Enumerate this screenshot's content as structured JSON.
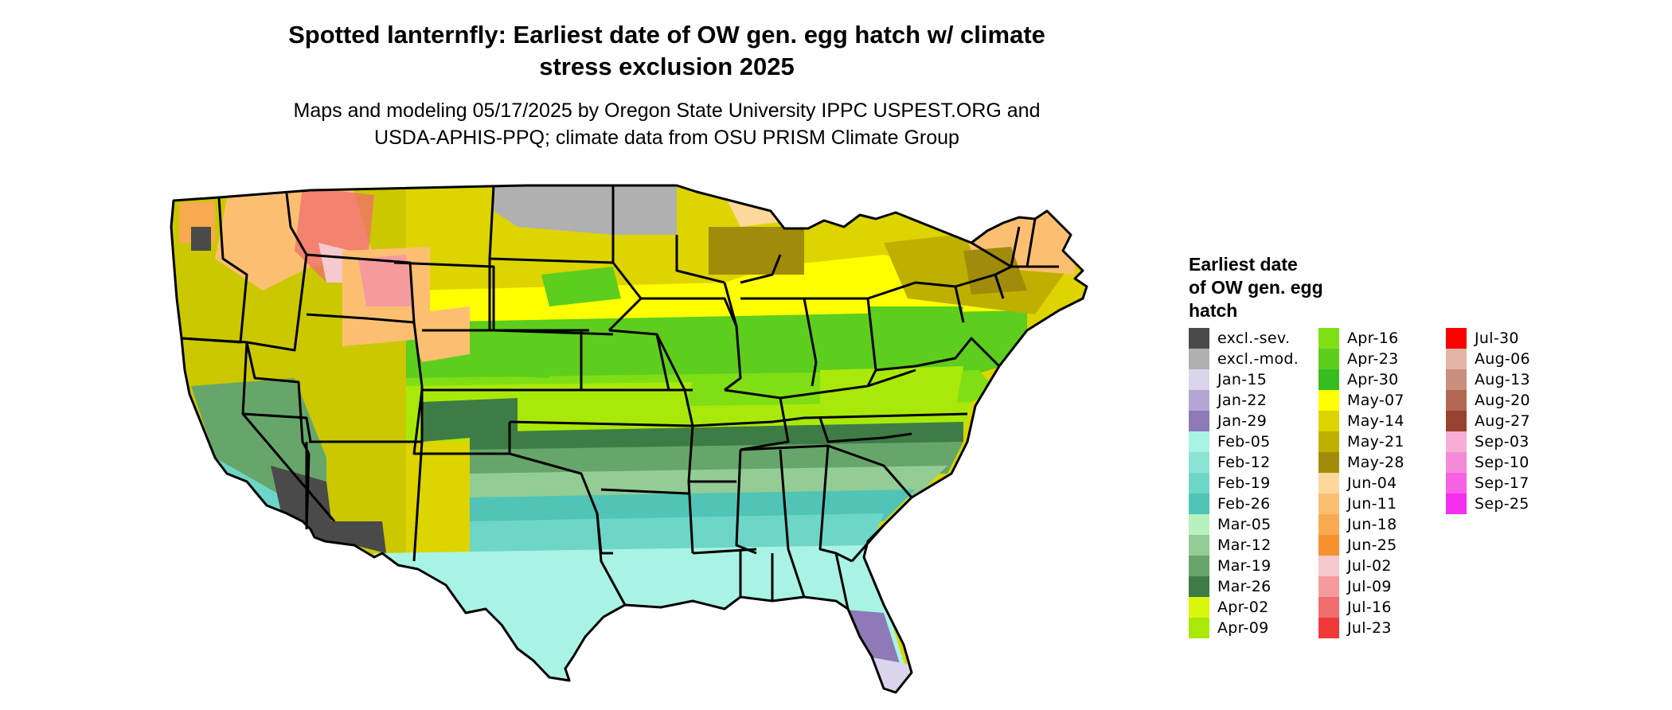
{
  "header": {
    "title_line1": "Spotted lanternfly: Earliest date of OW gen. egg hatch w/ climate",
    "title_line2": "stress exclusion 2025",
    "subtitle_line1": "Maps and modeling 05/17/2025 by Oregon State University IPPC USPEST.ORG and",
    "subtitle_line2": "USDA-APHIS-PPQ; climate data from OSU PRISM Climate Group"
  },
  "legend": {
    "title_lines": [
      "Earliest date",
      "of OW gen. egg",
      "hatch"
    ],
    "columns": [
      [
        {
          "label": "excl.-sev.",
          "color": "#4a4a4a"
        },
        {
          "label": "excl.-mod.",
          "color": "#b0b0b0"
        },
        {
          "label": "Jan-15",
          "color": "#dcd4ec"
        },
        {
          "label": "Jan-22",
          "color": "#b3a6d2"
        },
        {
          "label": "Jan-29",
          "color": "#8d7ab6"
        },
        {
          "label": "Feb-05",
          "color": "#a9f3e4"
        },
        {
          "label": "Feb-12",
          "color": "#8be4d4"
        },
        {
          "label": "Feb-19",
          "color": "#6dd6c7"
        },
        {
          "label": "Feb-26",
          "color": "#4fc4b7"
        },
        {
          "label": "Mar-05",
          "color": "#b7f2bd"
        },
        {
          "label": "Mar-12",
          "color": "#93cc94"
        },
        {
          "label": "Mar-19",
          "color": "#67a66a"
        },
        {
          "label": "Mar-26",
          "color": "#3e7c45"
        },
        {
          "label": "Apr-02",
          "color": "#d9f70a"
        },
        {
          "label": "Apr-09",
          "color": "#a9e90a"
        }
      ],
      [
        {
          "label": "Apr-16",
          "color": "#80df14"
        },
        {
          "label": "Apr-23",
          "color": "#5dcd1e"
        },
        {
          "label": "Apr-30",
          "color": "#37bd21"
        },
        {
          "label": "May-07",
          "color": "#ffff00"
        },
        {
          "label": "May-14",
          "color": "#ddd400"
        },
        {
          "label": "May-21",
          "color": "#bfb000"
        },
        {
          "label": "May-28",
          "color": "#a08c0a"
        },
        {
          "label": "Jun-04",
          "color": "#fdd89a"
        },
        {
          "label": "Jun-11",
          "color": "#fcbf72"
        },
        {
          "label": "Jun-18",
          "color": "#f9a94f"
        },
        {
          "label": "Jun-25",
          "color": "#f7912e"
        },
        {
          "label": "Jul-02",
          "color": "#f5c9cd"
        },
        {
          "label": "Jul-09",
          "color": "#f59b9e"
        },
        {
          "label": "Jul-16",
          "color": "#f06d6d"
        },
        {
          "label": "Jul-23",
          "color": "#f03a3a"
        }
      ],
      [
        {
          "label": "Jul-30",
          "color": "#ff0000"
        },
        {
          "label": "Aug-06",
          "color": "#e1b4a6"
        },
        {
          "label": "Aug-13",
          "color": "#c98e7c"
        },
        {
          "label": "Aug-20",
          "color": "#b16853"
        },
        {
          "label": "Aug-27",
          "color": "#98412e"
        },
        {
          "label": "Sep-03",
          "color": "#f7add6"
        },
        {
          "label": "Sep-10",
          "color": "#f58bd8"
        },
        {
          "label": "Sep-17",
          "color": "#f562e4"
        },
        {
          "label": "Sep-25",
          "color": "#f42ff0"
        }
      ]
    ]
  }
}
